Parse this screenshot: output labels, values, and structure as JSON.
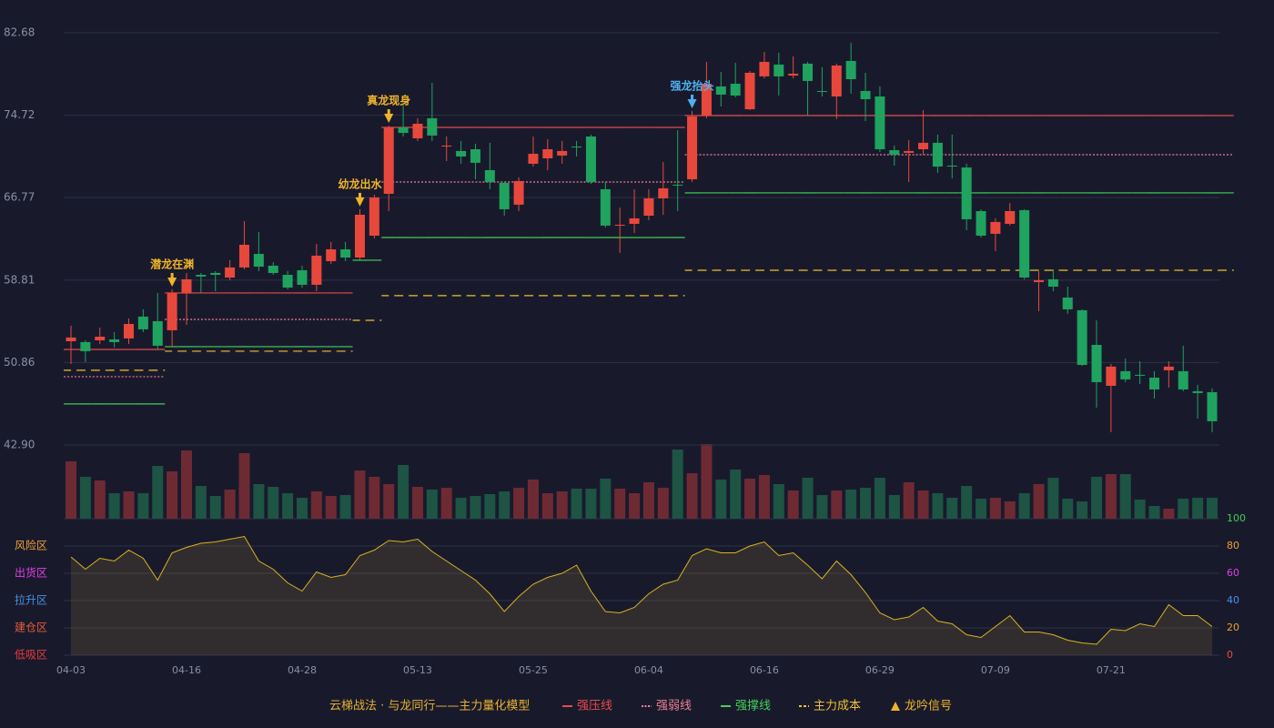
{
  "chart_data": [
    {
      "type": "candlestick",
      "categories": [
        "04-03",
        null,
        null,
        null,
        null,
        null,
        null,
        null,
        "04-16",
        null,
        null,
        null,
        null,
        null,
        null,
        null,
        "04-28",
        null,
        null,
        null,
        null,
        null,
        null,
        null,
        "05-13",
        null,
        null,
        null,
        null,
        null,
        null,
        null,
        "05-25",
        null,
        null,
        null,
        null,
        null,
        null,
        null,
        "06-04",
        null,
        null,
        null,
        null,
        null,
        null,
        null,
        "06-16",
        null,
        null,
        null,
        null,
        null,
        null,
        null,
        "06-29",
        null,
        null,
        null,
        null,
        null,
        null,
        null,
        "07-09",
        null,
        null,
        null,
        null,
        null,
        null,
        null,
        "07-21",
        null,
        null,
        null,
        null,
        null,
        null,
        null
      ],
      "open": [
        52.91,
        52.83,
        53.0,
        53.09,
        53.18,
        55.29,
        54.85,
        53.97,
        57.57,
        59.32,
        59.5,
        59.06,
        60.03,
        61.34,
        60.2,
        59.32,
        59.76,
        58.36,
        60.64,
        61.78,
        60.99,
        63.1,
        67.14,
        73.55,
        72.49,
        74.43,
        71.7,
        71.27,
        71.44,
        69.42,
        68.19,
        66.09,
        70.04,
        70.56,
        70.83,
        71.7,
        72.67,
        67.58,
        64.07,
        64.24,
        65.03,
        66.7,
        68.02,
        68.54,
        74.69,
        77.5,
        77.76,
        75.3,
        78.47,
        79.61,
        78.55,
        79.7,
        77.06,
        76.53,
        79.96,
        77.06,
        76.53,
        71.35,
        71.09,
        71.44,
        72.06,
        69.86,
        69.68,
        65.47,
        63.28,
        64.24,
        65.56,
        58.62,
        58.89,
        57.13,
        55.9,
        52.56,
        48.61,
        50.02,
        49.67,
        49.4,
        50.11,
        50.02,
        48.09,
        48.0
      ],
      "high": [
        54.41,
        53.0,
        54.23,
        53.79,
        55.11,
        55.99,
        57.57,
        57.92,
        59.5,
        59.5,
        59.68,
        60.73,
        64.5,
        63.45,
        60.55,
        59.68,
        60.2,
        62.31,
        62.49,
        62.49,
        65.65,
        67.05,
        73.72,
        75.74,
        74.43,
        77.85,
        72.67,
        72.23,
        71.97,
        72.06,
        68.28,
        68.72,
        72.67,
        72.41,
        72.23,
        72.23,
        72.85,
        68.28,
        65.82,
        67.58,
        67.58,
        70.21,
        73.28,
        75.13,
        79.87,
        78.9,
        79.78,
        78.99,
        80.84,
        80.75,
        80.4,
        79.87,
        79.34,
        79.7,
        81.71,
        78.82,
        77.5,
        71.79,
        72.32,
        75.22,
        72.85,
        72.85,
        70.04,
        65.65,
        64.77,
        66.26,
        65.65,
        59.68,
        59.85,
        58.18,
        55.99,
        54.93,
        50.72,
        51.25,
        50.98,
        50.02,
        50.98,
        52.48,
        48.7,
        48.35
      ],
      "low": [
        50.72,
        50.9,
        52.65,
        52.3,
        52.65,
        53.79,
        52.12,
        52.3,
        54.49,
        57.57,
        57.74,
        58.8,
        59.85,
        59.68,
        59.32,
        57.92,
        58.09,
        57.74,
        60.38,
        60.64,
        60.73,
        62.84,
        65.47,
        72.67,
        72.23,
        72.23,
        70.3,
        70.04,
        68.54,
        67.58,
        65.03,
        65.47,
        69.77,
        69.42,
        70.04,
        70.74,
        68.1,
        63.89,
        61.43,
        63.36,
        64.59,
        65.12,
        65.47,
        68.28,
        74.43,
        75.57,
        76.45,
        75.22,
        78.29,
        76.62,
        78.29,
        74.69,
        76.53,
        74.34,
        76.8,
        74.16,
        71.18,
        69.86,
        68.28,
        70.91,
        69.16,
        68.63,
        63.63,
        62.92,
        61.61,
        64.07,
        58.89,
        55.81,
        57.74,
        55.55,
        50.54,
        46.51,
        44.13,
        48.96,
        48.79,
        47.38,
        48.44,
        48.09,
        45.45,
        44.13
      ],
      "close": [
        53.27,
        51.95,
        53.35,
        52.83,
        54.58,
        54.06,
        52.48,
        57.57,
        58.89,
        59.15,
        59.32,
        60.03,
        62.22,
        60.11,
        59.5,
        58.09,
        58.36,
        61.17,
        61.78,
        60.99,
        65.12,
        66.79,
        73.55,
        73.02,
        73.9,
        72.76,
        71.79,
        70.74,
        70.13,
        68.28,
        65.65,
        68.37,
        71.0,
        71.44,
        71.27,
        71.62,
        68.28,
        64.07,
        64.15,
        64.77,
        66.7,
        67.67,
        67.93,
        74.6,
        77.76,
        76.71,
        76.62,
        78.82,
        79.87,
        78.47,
        78.73,
        78.03,
        76.97,
        79.52,
        78.2,
        76.27,
        71.44,
        70.91,
        71.27,
        72.06,
        69.77,
        69.77,
        64.68,
        63.1,
        64.42,
        65.47,
        59.06,
        58.8,
        58.18,
        55.99,
        50.63,
        48.96,
        50.46,
        49.23,
        49.58,
        48.26,
        50.46,
        48.26,
        47.91,
        45.19
      ],
      "up_color": "#e8483c",
      "down_color": "#1fa35f",
      "ylim": [
        42.9,
        82.68
      ],
      "yticks": [
        {
          "value": 42.9,
          "label": "42.90"
        },
        50.86,
        58.81,
        66.77,
        74.72,
        82.68
      ],
      "grid": true,
      "levels": [
        {
          "name": "强压线",
          "color": "#e84a4a",
          "dash": "solid",
          "values": [
            52.12,
            52.12,
            52.12,
            52.12,
            52.12,
            52.12,
            52.12,
            57.57,
            57.57,
            57.57,
            57.57,
            57.57,
            57.57,
            57.57,
            57.57,
            57.57,
            57.57,
            57.57,
            57.57,
            57.57,
            null,
            null,
            73.55,
            73.55,
            73.55,
            73.55,
            73.55,
            73.55,
            73.55,
            73.55,
            73.55,
            73.55,
            73.55,
            73.55,
            73.55,
            73.55,
            73.55,
            73.55,
            73.55,
            73.55,
            73.55,
            73.55,
            73.55,
            74.69,
            74.69,
            74.69,
            74.69,
            74.69,
            74.69,
            74.69,
            74.69,
            74.69,
            74.69,
            74.69,
            74.69,
            74.69,
            74.69,
            74.69,
            74.69,
            74.69,
            74.69,
            74.69,
            74.69,
            74.69,
            74.69,
            74.69,
            74.69,
            74.69,
            74.69,
            74.69,
            74.69,
            74.69,
            74.69,
            74.69,
            74.69,
            74.69,
            74.69,
            74.69,
            74.69,
            74.69,
            74.69
          ]
        },
        {
          "name": "强弱线",
          "color": "#f07f94",
          "dash": "dotted",
          "values": [
            49.49,
            49.49,
            49.49,
            49.49,
            49.49,
            49.49,
            49.49,
            55.02,
            55.02,
            55.02,
            55.02,
            55.02,
            55.02,
            55.02,
            55.02,
            55.02,
            55.02,
            55.02,
            55.02,
            55.02,
            null,
            null,
            68.28,
            68.28,
            68.28,
            68.28,
            68.28,
            68.28,
            68.28,
            68.28,
            68.28,
            68.28,
            68.28,
            68.28,
            68.28,
            68.28,
            68.28,
            68.28,
            68.28,
            68.28,
            68.28,
            68.28,
            68.28,
            70.91,
            70.91,
            70.91,
            70.91,
            70.91,
            70.91,
            70.91,
            70.91,
            70.91,
            70.91,
            70.91,
            70.91,
            70.91,
            70.91,
            70.91,
            70.91,
            70.91,
            70.91,
            70.91,
            70.91,
            70.91,
            70.91,
            70.91,
            70.91,
            70.91,
            70.91,
            70.91,
            70.91,
            70.91,
            70.91,
            70.91,
            70.91,
            70.91,
            70.91,
            70.91,
            70.91,
            70.91,
            70.91
          ]
        },
        {
          "name": "强撑线",
          "color": "#44d056",
          "dash": "solid",
          "values": [
            46.86,
            46.86,
            46.86,
            46.86,
            46.86,
            46.86,
            46.86,
            52.39,
            52.39,
            52.39,
            52.39,
            52.39,
            52.39,
            52.39,
            52.39,
            52.39,
            52.39,
            52.39,
            52.39,
            52.39,
            60.73,
            60.73,
            62.92,
            62.92,
            62.92,
            62.92,
            62.92,
            62.92,
            62.92,
            62.92,
            62.92,
            62.92,
            62.92,
            62.92,
            62.92,
            62.92,
            62.92,
            62.92,
            62.92,
            62.92,
            62.92,
            62.92,
            62.92,
            67.23,
            67.23,
            67.23,
            67.23,
            67.23,
            67.23,
            67.23,
            67.23,
            67.23,
            67.23,
            67.23,
            67.23,
            67.23,
            67.23,
            67.23,
            67.23,
            67.23,
            67.23,
            67.23,
            67.23,
            67.23,
            67.23,
            67.23,
            67.23,
            67.23,
            67.23,
            67.23,
            67.23,
            67.23,
            67.23,
            67.23,
            67.23,
            67.23,
            67.23,
            67.23,
            67.23,
            67.23,
            67.23
          ]
        },
        {
          "name": "主力成本",
          "color": "#f0c030",
          "dash": "dashed",
          "values": [
            50.11,
            50.11,
            50.11,
            50.11,
            50.11,
            50.11,
            50.11,
            51.95,
            51.95,
            51.95,
            51.95,
            51.95,
            51.95,
            51.95,
            51.95,
            51.95,
            51.95,
            51.95,
            51.95,
            51.95,
            54.93,
            54.93,
            57.31,
            57.31,
            57.31,
            57.31,
            57.31,
            57.31,
            57.31,
            57.31,
            57.31,
            57.31,
            57.31,
            57.31,
            57.31,
            57.31,
            57.31,
            57.31,
            57.31,
            57.31,
            57.31,
            57.31,
            57.31,
            59.76,
            59.76,
            59.76,
            59.76,
            59.76,
            59.76,
            59.76,
            59.76,
            59.76,
            59.76,
            59.76,
            59.76,
            59.76,
            59.76,
            59.76,
            59.76,
            59.76,
            59.76,
            59.76,
            59.76,
            59.76,
            59.76,
            59.76,
            59.76,
            59.76,
            59.76,
            59.76,
            59.76,
            59.76,
            59.76,
            59.76,
            59.76,
            59.76,
            59.76,
            59.76,
            59.76,
            59.76,
            59.76
          ]
        }
      ],
      "signals": [
        {
          "x": 7,
          "label": "潜龙在渊",
          "color": "#f0b429"
        },
        {
          "x": 20,
          "label": "幼龙出水",
          "color": "#f0b429"
        },
        {
          "x": 22,
          "label": "真龙现身",
          "color": "#f0b429"
        },
        {
          "x": 43,
          "label": "强龙抬头",
          "color": "#4fb0f0"
        }
      ],
      "signal_name": "龙吟信号",
      "signal_color": "#f0b429",
      "legend_title": "云梯战法 · 与龙同行——主力量化模型",
      "legend_title_color": "#e8b030"
    },
    {
      "type": "bar",
      "values": [
        63,
        46,
        42,
        28,
        30,
        28,
        58,
        52,
        75,
        36,
        25,
        32,
        72,
        38,
        35,
        28,
        23,
        30,
        25,
        26,
        53,
        46,
        38,
        59,
        35,
        32,
        34,
        23,
        25,
        27,
        30,
        34,
        43,
        28,
        30,
        33,
        33,
        44,
        33,
        28,
        40,
        34,
        76,
        50,
        82,
        43,
        54,
        44,
        48,
        38,
        31,
        45,
        26,
        31,
        32,
        34,
        45,
        26,
        40,
        31,
        28,
        23,
        36,
        22,
        23,
        19,
        28,
        38,
        45,
        22,
        19,
        46,
        49,
        49,
        21,
        14,
        11,
        22,
        23,
        23
      ],
      "up_color": "#6e2a33",
      "down_color": "#1d5443"
    },
    {
      "type": "line",
      "values": [
        72,
        63,
        71,
        69,
        77,
        71,
        55,
        75,
        79,
        82,
        83,
        85,
        87,
        69,
        63,
        53,
        47,
        61,
        57,
        59,
        73,
        77,
        84,
        83,
        85,
        76,
        69,
        62,
        55,
        45,
        32,
        43,
        52,
        57,
        60,
        66,
        47,
        32,
        31,
        35,
        45,
        52,
        55,
        73,
        78,
        75,
        75,
        80,
        83,
        73,
        75,
        66,
        56,
        69,
        59,
        46,
        31,
        26,
        28,
        35,
        25,
        23,
        15,
        13,
        21,
        29,
        17,
        17,
        15,
        11,
        9,
        8,
        19,
        18,
        23,
        21,
        37,
        29,
        29,
        21
      ],
      "color": "#d9b21e",
      "ylim": [
        0,
        100
      ],
      "yticks": [
        0,
        20,
        40,
        60,
        80,
        100
      ],
      "ytick_colors": [
        "#e84a4a",
        "#f0a030",
        "#4a90e2",
        "#e040e0",
        "#f0a030",
        "#3cd050"
      ],
      "zones": [
        {
          "value": 80,
          "label": "风险区"
        },
        {
          "value": 60,
          "label": "出货区"
        },
        {
          "value": 40,
          "label": "拉升区"
        },
        {
          "value": 20,
          "label": "建仓区"
        },
        {
          "value": 0,
          "label": "低吸区"
        }
      ],
      "zone_colors": [
        "#f0a030",
        "#e040e0",
        "#4a90e2",
        "#e85a3a",
        "#e83c3c"
      ],
      "grid": true
    }
  ]
}
